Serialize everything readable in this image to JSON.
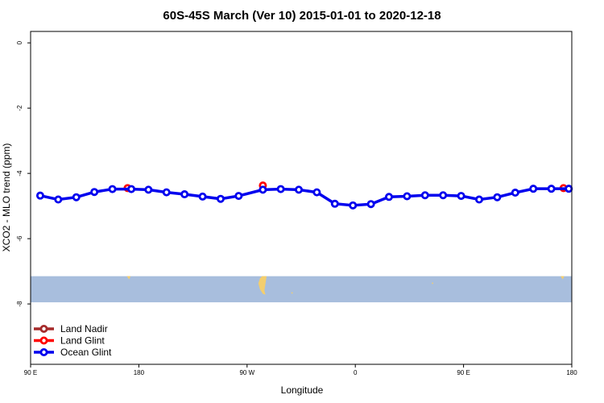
{
  "chart_data": {
    "type": "line",
    "title": "60S-45S March (Ver 10)   2015-01-01 to 2020-12-18",
    "xlabel": "Longitude",
    "ylabel": "XCO2 - MLO trend (ppm)",
    "xlim": [
      90,
      450
    ],
    "ylim": [
      -9.85,
      0.35
    ],
    "x_ticks": [
      {
        "value": 90,
        "label": "90 E"
      },
      {
        "value": 162,
        "label": "180"
      },
      {
        "value": 234,
        "label": "90 W"
      },
      {
        "value": 306,
        "label": "0"
      },
      {
        "value": 378,
        "label": "90 E"
      },
      {
        "value": 450,
        "label": "180"
      }
    ],
    "y_ticks": [
      {
        "value": 0,
        "label": "0"
      },
      {
        "value": -2,
        "label": "-2"
      },
      {
        "value": -4,
        "label": "-4"
      },
      {
        "value": -6,
        "label": "-6"
      },
      {
        "value": -8,
        "label": "-8"
      }
    ],
    "map_band": {
      "y_top": -7.15,
      "y_bottom": -7.95,
      "color": "#a8bedd",
      "land_color": "#f3ce6e"
    },
    "legend_position": "bottom-left",
    "series": [
      {
        "name": "Land Nadir",
        "color": "#a52a2a",
        "x": [],
        "y": []
      },
      {
        "name": "Land Glint",
        "color": "#ff0000",
        "x": [
          154.5,
          244.5,
          444.5
        ],
        "y": [
          -4.45,
          -4.37,
          -4.45
        ]
      },
      {
        "name": "Ocean Glint",
        "color": "#0000ee",
        "x": [
          96.4,
          108.4,
          120.4,
          132.4,
          144.4,
          157.0,
          168.4,
          180.4,
          192.4,
          204.4,
          216.4,
          228.4,
          244.5,
          256.4,
          268.4,
          280.4,
          292.4,
          304.4,
          316.4,
          328.4,
          340.4,
          352.4,
          364.4,
          376.4,
          388.4,
          400.4,
          412.4,
          424.4,
          436.4,
          448.0
        ],
        "y": [
          -4.68,
          -4.8,
          -4.73,
          -4.57,
          -4.48,
          -4.48,
          -4.5,
          -4.58,
          -4.64,
          -4.71,
          -4.78,
          -4.69,
          -4.5,
          -4.48,
          -4.5,
          -4.58,
          -4.93,
          -4.98,
          -4.94,
          -4.72,
          -4.7,
          -4.67,
          -4.67,
          -4.69,
          -4.8,
          -4.73,
          -4.59,
          -4.47,
          -4.47,
          -4.47
        ]
      }
    ]
  }
}
